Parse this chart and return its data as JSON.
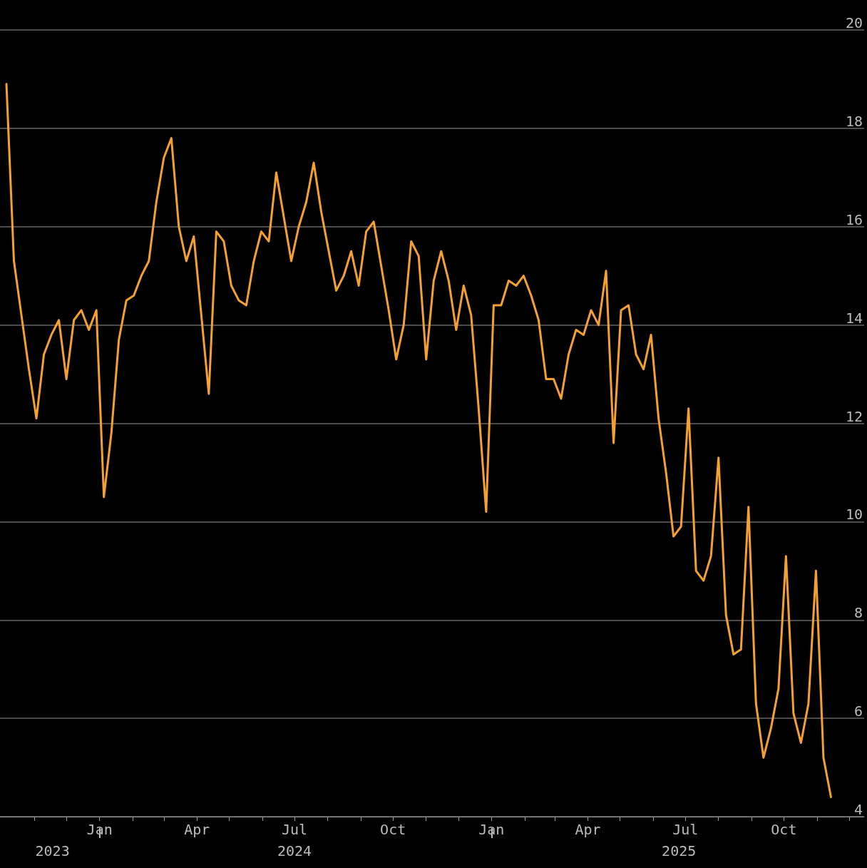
{
  "chart_data": {
    "type": "line",
    "x": [
      "2023-10-06",
      "2023-10-13",
      "2023-10-20",
      "2023-10-27",
      "2023-11-03",
      "2023-11-10",
      "2023-11-17",
      "2023-11-24",
      "2023-12-01",
      "2023-12-08",
      "2023-12-15",
      "2023-12-22",
      "2023-12-29",
      "2024-01-05",
      "2024-01-12",
      "2024-01-19",
      "2024-01-26",
      "2024-02-02",
      "2024-02-09",
      "2024-02-16",
      "2024-02-23",
      "2024-03-01",
      "2024-03-08",
      "2024-03-15",
      "2024-03-22",
      "2024-03-29",
      "2024-04-05",
      "2024-04-12",
      "2024-04-19",
      "2024-04-26",
      "2024-05-03",
      "2024-05-10",
      "2024-05-17",
      "2024-05-24",
      "2024-05-31",
      "2024-06-07",
      "2024-06-14",
      "2024-06-21",
      "2024-06-28",
      "2024-07-05",
      "2024-07-12",
      "2024-07-19",
      "2024-07-26",
      "2024-08-02",
      "2024-08-09",
      "2024-08-16",
      "2024-08-23",
      "2024-08-30",
      "2024-09-06",
      "2024-09-13",
      "2024-09-20",
      "2024-09-27",
      "2024-10-04",
      "2024-10-11",
      "2024-10-18",
      "2024-10-25",
      "2024-11-01",
      "2024-11-08",
      "2024-11-15",
      "2024-11-22",
      "2024-11-29",
      "2024-12-06",
      "2024-12-13",
      "2024-12-20",
      "2024-12-27",
      "2025-01-03",
      "2025-01-10",
      "2025-01-17",
      "2025-01-24",
      "2025-01-31",
      "2025-02-07",
      "2025-02-14",
      "2025-02-21",
      "2025-02-28",
      "2025-03-07",
      "2025-03-14",
      "2025-03-21",
      "2025-03-28",
      "2025-04-04",
      "2025-04-11",
      "2025-04-18",
      "2025-04-25",
      "2025-05-02",
      "2025-05-09",
      "2025-05-16",
      "2025-05-23",
      "2025-05-30",
      "2025-06-06",
      "2025-06-13",
      "2025-06-20",
      "2025-06-27",
      "2025-07-04",
      "2025-07-11",
      "2025-07-18",
      "2025-07-25",
      "2025-08-01",
      "2025-08-08",
      "2025-08-15",
      "2025-08-22",
      "2025-08-29",
      "2025-09-05",
      "2025-09-12",
      "2025-09-19",
      "2025-09-26",
      "2025-10-03",
      "2025-10-10",
      "2025-10-17",
      "2025-10-24",
      "2025-10-31",
      "2025-11-07",
      "2025-11-14"
    ],
    "series": [
      {
        "color": "#f5a030",
        "values": [
          18.9,
          15.3,
          14.2,
          13.1,
          12.1,
          13.4,
          13.8,
          14.1,
          12.9,
          14.1,
          14.3,
          13.9,
          14.3,
          10.5,
          11.8,
          13.7,
          14.5,
          14.6,
          15.0,
          15.3,
          16.5,
          17.4,
          17.8,
          16.0,
          15.3,
          15.8,
          14.2,
          12.6,
          15.9,
          15.7,
          14.8,
          14.5,
          14.4,
          15.3,
          15.9,
          15.7,
          17.1,
          16.2,
          15.3,
          16.0,
          16.5,
          17.3,
          16.3,
          15.5,
          14.7,
          15.0,
          15.5,
          14.8,
          15.9,
          16.1,
          15.2,
          14.3,
          13.3,
          14.0,
          15.7,
          15.4,
          13.3,
          14.9,
          15.5,
          14.9,
          13.9,
          14.8,
          14.2,
          12.3,
          10.2,
          14.4,
          14.4,
          14.9,
          14.8,
          15.0,
          14.6,
          14.1,
          12.9,
          12.9,
          12.5,
          13.4,
          13.9,
          13.8,
          14.3,
          14.0,
          15.1,
          11.6,
          14.3,
          14.4,
          13.4,
          13.1,
          13.8,
          12.1,
          11.0,
          9.7,
          9.9,
          12.3,
          9.0,
          8.8,
          9.3,
          11.3,
          8.1,
          7.3,
          7.4,
          10.3,
          6.3,
          5.2,
          5.8,
          6.6,
          9.3,
          6.1,
          5.5,
          6.3,
          9.0,
          5.2,
          4.4
        ]
      }
    ],
    "xlim": [
      "2023-09-30",
      "2025-12-15"
    ],
    "xticks": [
      {
        "value": "2023-11-01",
        "label": null
      },
      {
        "value": "2023-12-01",
        "label": null
      },
      {
        "value": "2024-01-01",
        "label": "Jan"
      },
      {
        "value": "2024-02-01",
        "label": null
      },
      {
        "value": "2024-03-01",
        "label": null
      },
      {
        "value": "2024-04-01",
        "label": "Apr"
      },
      {
        "value": "2024-05-01",
        "label": null
      },
      {
        "value": "2024-06-01",
        "label": null
      },
      {
        "value": "2024-07-01",
        "label": "Jul"
      },
      {
        "value": "2024-08-01",
        "label": null
      },
      {
        "value": "2024-09-01",
        "label": null
      },
      {
        "value": "2024-10-01",
        "label": "Oct"
      },
      {
        "value": "2024-11-01",
        "label": null
      },
      {
        "value": "2024-12-01",
        "label": null
      },
      {
        "value": "2025-01-01",
        "label": "Jan"
      },
      {
        "value": "2025-02-01",
        "label": null
      },
      {
        "value": "2025-03-01",
        "label": null
      },
      {
        "value": "2025-04-01",
        "label": "Apr"
      },
      {
        "value": "2025-05-01",
        "label": null
      },
      {
        "value": "2025-06-01",
        "label": null
      },
      {
        "value": "2025-07-01",
        "label": "Jul"
      },
      {
        "value": "2025-08-01",
        "label": null
      },
      {
        "value": "2025-09-01",
        "label": null
      },
      {
        "value": "2025-10-01",
        "label": "Oct"
      },
      {
        "value": "2025-11-01",
        "label": null
      },
      {
        "value": "2025-12-01",
        "label": null
      }
    ],
    "x2lim": [
      "2023-09-30",
      "2025-12-15"
    ],
    "x2ticks": [
      {
        "value": "2023-11-18",
        "label": "2023"
      },
      {
        "value": "2024-01-01",
        "label": null
      },
      {
        "value": "2024-07-01",
        "label": "2024"
      },
      {
        "value": "2025-01-01",
        "label": null
      },
      {
        "value": "2025-06-25",
        "label": "2025"
      }
    ],
    "ylim": [
      4,
      20
    ],
    "yticks": [
      4,
      6,
      8,
      10,
      12,
      14,
      16,
      18,
      20
    ],
    "grid": "y"
  }
}
